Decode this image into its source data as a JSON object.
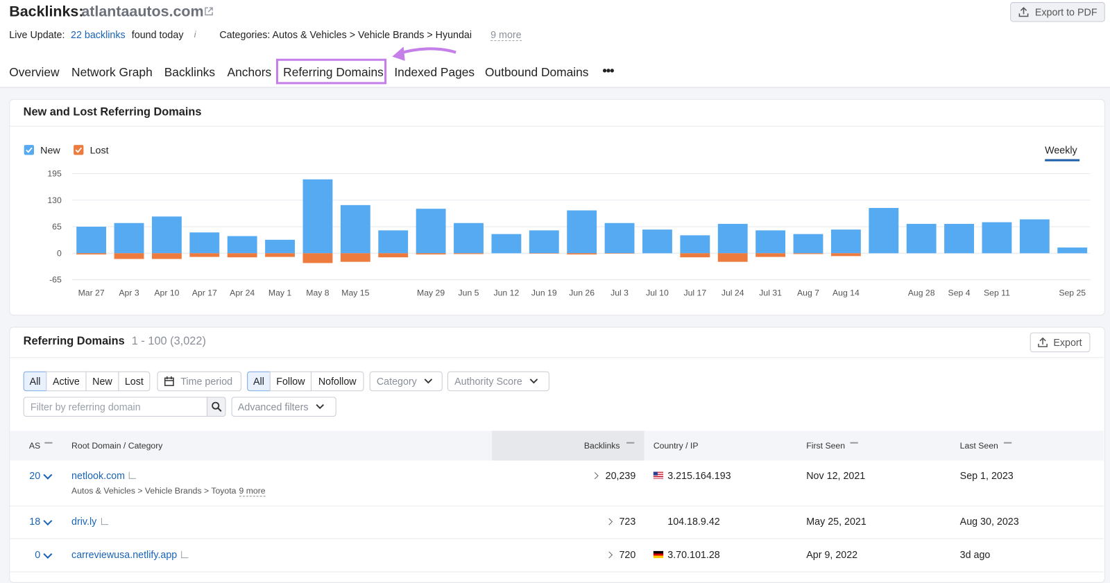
{
  "header": {
    "title": "Backlinks:",
    "domain": "atlantaautos.com",
    "export": "Export to PDF"
  },
  "live_update": {
    "label": "Live Update:",
    "count_link": "22 backlinks",
    "suffix": "found today",
    "categories": "Categories: Autos & Vehicles > Vehicle Brands > Hyundai",
    "more": "9 more"
  },
  "tabs": [
    "Overview",
    "Network Graph",
    "Backlinks",
    "Anchors",
    "Referring Domains",
    "Indexed Pages",
    "Outbound Domains"
  ],
  "chart_panel": {
    "title": "New and Lost Referring Domains",
    "period": "Weekly"
  },
  "chart_data": {
    "type": "bar",
    "categories": [
      "Mar 27",
      "Apr 3",
      "Apr 10",
      "Apr 17",
      "Apr 24",
      "May 1",
      "May 8",
      "May 15",
      null,
      "May 29",
      "Jun 5",
      "Jun 12",
      "Jun 19",
      "Jun 26",
      "Jul 3",
      "Jul 10",
      "Jul 17",
      "Jul 24",
      "Jul 31",
      "Aug 7",
      "Aug 14",
      null,
      "Aug 28",
      "Sep 4",
      "Sep 11",
      null,
      "Sep 25"
    ],
    "series": [
      {
        "name": "New",
        "color": "#55aaf2",
        "values": [
          65,
          74,
          90,
          51,
          42,
          33,
          181,
          118,
          56,
          109,
          74,
          47,
          56,
          105,
          74,
          58,
          44,
          72,
          56,
          47,
          58,
          111,
          72,
          72,
          76,
          83,
          14
        ]
      },
      {
        "name": "Lost",
        "color": "#ee7b3e",
        "values": [
          -3,
          -14,
          -14,
          -9,
          -10,
          -9,
          -24,
          -21,
          -10,
          -3,
          -2,
          0,
          -1,
          -3,
          -1,
          0,
          -10,
          -21,
          -9,
          -2,
          -7,
          0,
          0,
          0,
          0,
          0,
          0
        ]
      }
    ],
    "ylim": [
      -65,
      195
    ],
    "yticks": [
      -65,
      0,
      65,
      130,
      195
    ],
    "grid": true
  },
  "domains_panel": {
    "title": "Referring Domains",
    "range": "1 - 100 (3,022)",
    "export": "Export"
  },
  "filters": {
    "type": [
      "All",
      "Active",
      "New",
      "Lost"
    ],
    "time_period": "Time period",
    "follow": [
      "All",
      "Follow",
      "Nofollow"
    ],
    "category": "Category",
    "authority": "Authority Score",
    "search_placeholder": "Filter by referring domain",
    "advanced": "Advanced filters"
  },
  "table": {
    "columns": [
      "AS",
      "Root Domain / Category",
      "Backlinks",
      "Country / IP",
      "First Seen",
      "Last Seen"
    ],
    "rows": [
      [
        "20",
        "netlook.com",
        "Autos & Vehicles > Vehicle Brands > Toyota",
        "9 more",
        "20,239",
        "3.215.164.193",
        "Nov 12, 2021",
        "Sep 1, 2023"
      ],
      [
        "18",
        "driv.ly",
        null,
        null,
        "723",
        "104.18.9.42",
        "May 25, 2021",
        "Aug 30, 2023"
      ],
      [
        "0",
        "carreviewusa.netlify.app",
        null,
        null,
        "720",
        "3.70.101.28",
        "Apr 9, 2022",
        "3d ago"
      ]
    ]
  }
}
